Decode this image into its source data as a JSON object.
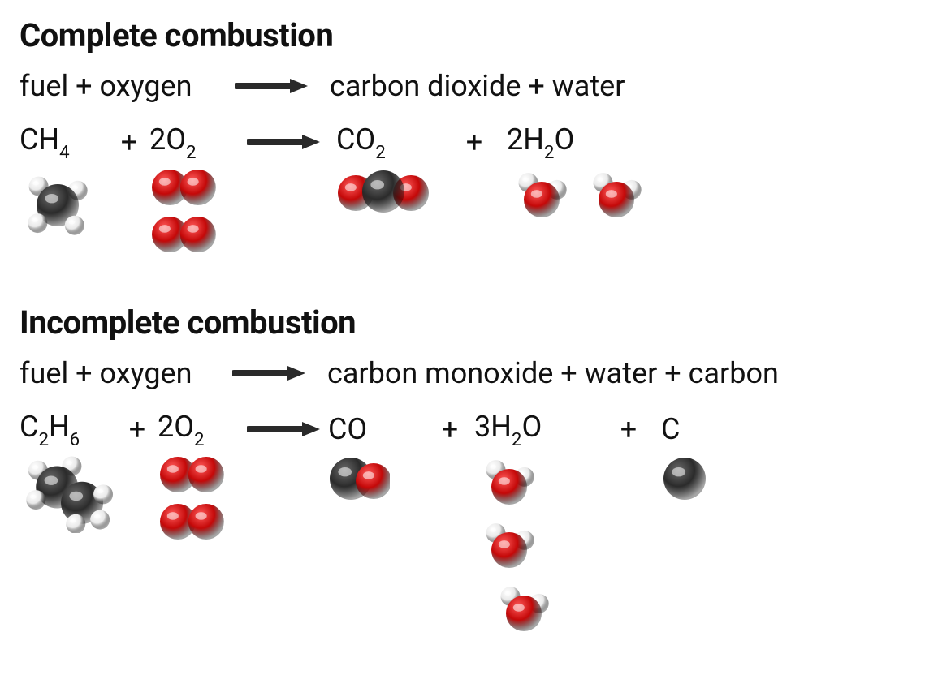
{
  "colors": {
    "text": "#111111",
    "background": "#ffffff",
    "arrow": "#2a2a2a",
    "carbon": "#2b2b2b",
    "carbon_hl": "#6a6a6a",
    "oxygen": "#c40808",
    "oxygen_hl": "#ff5a5a",
    "hydrogen": "#e9e9e9",
    "hydrogen_hl": "#ffffff"
  },
  "typography": {
    "title_fontsize": 40,
    "title_weight": 700,
    "body_fontsize": 36,
    "body_weight": 400
  },
  "arrow": {
    "length": 90,
    "stroke_width": 8,
    "head_w": 22,
    "head_h": 18
  },
  "atom_radii": {
    "carbon": 26,
    "oxygen": 22,
    "hydrogen": 12
  },
  "layout": {
    "complete": {
      "col_widths_word": [
        260,
        100,
        700
      ],
      "col_widths_formula": [
        110,
        50,
        100,
        130,
        130,
        80,
        170
      ],
      "col_widths_mol": [
        110,
        50,
        100,
        130,
        130,
        80,
        170
      ]
    },
    "incomplete": {
      "col_widths_word": [
        260,
        100,
        740
      ],
      "col_widths_formula": [
        120,
        50,
        100,
        110,
        120,
        60,
        150,
        80,
        80
      ],
      "col_widths_mol": [
        120,
        50,
        100,
        110,
        120,
        60,
        150,
        80,
        80
      ]
    }
  },
  "sections": {
    "complete": {
      "title": "Complete combustion",
      "word_lhs": "fuel + oxygen",
      "word_rhs": "carbon dioxide + water",
      "formula": {
        "t0": {
          "base": "CH",
          "sub": "4"
        },
        "t1": "+",
        "t2": {
          "pre": "2",
          "base": "O",
          "sub": "2"
        },
        "t3": "arrow",
        "t4": {
          "base": "CO",
          "sub": "2"
        },
        "t5": "+",
        "t6": {
          "pre": "2",
          "base": "H",
          "sub": "2",
          "post": "O"
        }
      },
      "molecules": {
        "m0": {
          "type": "CH4",
          "count": 1
        },
        "m2": {
          "type": "O2",
          "count": 2,
          "stack": true
        },
        "m4": {
          "type": "CO2",
          "count": 1
        },
        "m6": {
          "type": "H2O",
          "count": 2
        }
      }
    },
    "incomplete": {
      "title": "Incomplete combustion",
      "word_lhs": "fuel + oxygen",
      "word_rhs": "carbon monoxide + water + carbon",
      "formula": {
        "t0": {
          "base": "C",
          "sub": "2",
          "mid": "H",
          "sub2": "6"
        },
        "t1": "+",
        "t2": {
          "pre": "2",
          "base": "O",
          "sub": "2"
        },
        "t3": "arrow",
        "t4": {
          "base": "CO"
        },
        "t5": "+",
        "t6": {
          "pre": "3",
          "base": "H",
          "sub": "2",
          "post": "O"
        },
        "t7": "+",
        "t8": {
          "base": "C"
        }
      },
      "molecules": {
        "m0": {
          "type": "C2H6",
          "count": 1
        },
        "m2": {
          "type": "O2",
          "count": 2,
          "stack": true
        },
        "m4": {
          "type": "CO",
          "count": 1
        },
        "m6": {
          "type": "H2O",
          "count": 3
        },
        "m8": {
          "type": "C",
          "count": 1
        }
      }
    }
  }
}
